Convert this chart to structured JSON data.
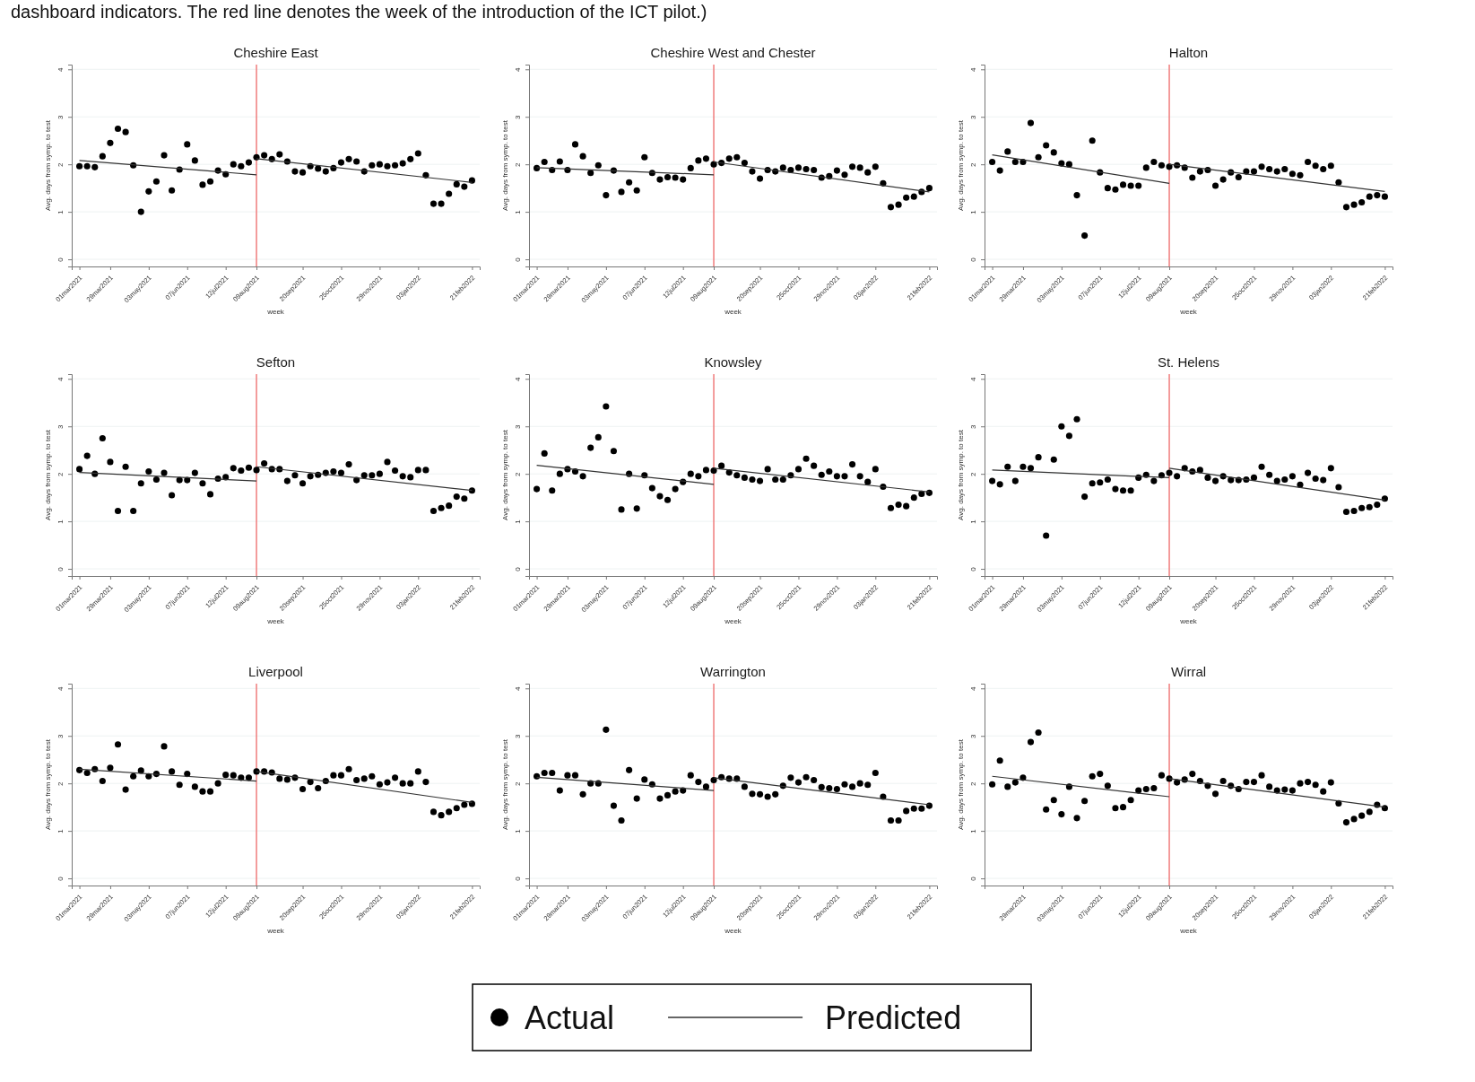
{
  "chart_data": [
    {
      "type": "scatter",
      "title": "Cheshire East",
      "xlabel": "week",
      "ylabel": "Avg. days from symp. to test",
      "annotations": [
        "dashboard indicators. The red line denotes the week of the introduction of the ICT pilot.)"
      ],
      "x": [
        "2021-03-01",
        "2021-03-08",
        "2021-03-15",
        "2021-03-22",
        "2021-03-29",
        "2021-04-05",
        "2021-04-12",
        "2021-04-19",
        "2021-04-26",
        "2021-05-03",
        "2021-05-10",
        "2021-05-17",
        "2021-05-24",
        "2021-05-31",
        "2021-06-07",
        "2021-06-14",
        "2021-06-21",
        "2021-06-28",
        "2021-07-05",
        "2021-07-12",
        "2021-07-19",
        "2021-07-26",
        "2021-08-02",
        "2021-08-09",
        "2021-08-16",
        "2021-08-23",
        "2021-08-30",
        "2021-09-06",
        "2021-09-13",
        "2021-09-20",
        "2021-09-27",
        "2021-10-04",
        "2021-10-11",
        "2021-10-18",
        "2021-10-25",
        "2021-11-01",
        "2021-11-08",
        "2021-11-15",
        "2021-11-22",
        "2021-11-29",
        "2021-12-06",
        "2021-12-13",
        "2021-12-20",
        "2021-12-27",
        "2022-01-03",
        "2022-01-10",
        "2022-01-17",
        "2022-01-24",
        "2022-01-31",
        "2022-02-07",
        "2022-02-14",
        "2022-02-21"
      ],
      "xlim": [
        "2021-02-22",
        "2022-02-28"
      ],
      "xticks": [
        {
          "value": "2021-03-01",
          "label": "01mar2021"
        },
        {
          "value": "2021-03-29",
          "label": "29mar2021"
        },
        {
          "value": "2021-05-03",
          "label": "03may2021"
        },
        {
          "value": "2021-06-07",
          "label": "07jun2021"
        },
        {
          "value": "2021-07-12",
          "label": "12jul2021"
        },
        {
          "value": "2021-08-09",
          "label": "09aug2021"
        },
        {
          "value": "2021-09-20",
          "label": "20sep2021"
        },
        {
          "value": "2021-10-25",
          "label": "25oct2021"
        },
        {
          "value": "2021-11-29",
          "label": "29nov2021"
        },
        {
          "value": "2022-01-03",
          "label": "03jan2022"
        },
        {
          "value": "2022-02-21",
          "label": "21feb2022"
        }
      ],
      "ylim": [
        -0.15,
        4.1
      ],
      "yticks": [
        0,
        1,
        2,
        3,
        4
      ],
      "grid": "y",
      "marker": "circle",
      "ref_lines": [
        {
          "axis": "x",
          "value": "2021-08-09",
          "color": "#f07c7c"
        }
      ],
      "series": [
        {
          "color": "#000000",
          "values": [
            1.96,
            1.96,
            1.94,
            2.17,
            2.45,
            2.75,
            2.68,
            1.98,
            1.0,
            1.43,
            1.64,
            2.19,
            1.45,
            1.89,
            2.42,
            2.08,
            1.57,
            1.64,
            1.87,
            1.79,
            2.0,
            1.96,
            2.04,
            2.15,
            2.19,
            2.11,
            2.21,
            2.06,
            1.85,
            1.83,
            1.96,
            1.91,
            1.85,
            1.92,
            2.04,
            2.11,
            2.06,
            1.85,
            1.98,
            2.0,
            1.96,
            1.98,
            2.02,
            2.11,
            2.23,
            1.77,
            1.17,
            1.17,
            1.38,
            1.58,
            1.53,
            1.66
          ]
        },
        {
          "type": "line",
          "color": "#333333",
          "marker": "none",
          "x": [
            "2021-03-01",
            "2021-08-09"
          ],
          "values": [
            2.08,
            1.78
          ]
        },
        {
          "type": "line",
          "color": "#333333",
          "marker": "none",
          "x": [
            "2021-08-09",
            "2022-02-21"
          ],
          "values": [
            2.12,
            1.62
          ]
        }
      ]
    },
    {
      "type": "scatter",
      "title": "Cheshire West and Chester",
      "xlabel": "week",
      "ylabel": "Avg. days from symp. to test",
      "x": [
        "2021-03-01",
        "2021-03-08",
        "2021-03-15",
        "2021-03-22",
        "2021-03-29",
        "2021-04-05",
        "2021-04-12",
        "2021-04-19",
        "2021-04-26",
        "2021-05-03",
        "2021-05-10",
        "2021-05-17",
        "2021-05-24",
        "2021-05-31",
        "2021-06-07",
        "2021-06-14",
        "2021-06-21",
        "2021-06-28",
        "2021-07-05",
        "2021-07-12",
        "2021-07-19",
        "2021-07-26",
        "2021-08-02",
        "2021-08-09",
        "2021-08-16",
        "2021-08-23",
        "2021-08-30",
        "2021-09-06",
        "2021-09-13",
        "2021-09-20",
        "2021-09-27",
        "2021-10-04",
        "2021-10-11",
        "2021-10-18",
        "2021-10-25",
        "2021-11-01",
        "2021-11-08",
        "2021-11-15",
        "2021-11-22",
        "2021-11-29",
        "2021-12-06",
        "2021-12-13",
        "2021-12-20",
        "2021-12-27",
        "2022-01-03",
        "2022-01-10",
        "2022-01-17",
        "2022-01-24",
        "2022-01-31",
        "2022-02-07",
        "2022-02-14",
        "2022-02-21"
      ],
      "xlim": [
        "2021-02-22",
        "2022-02-28"
      ],
      "xticks": [
        {
          "value": "2021-03-01",
          "label": "01mar2021"
        },
        {
          "value": "2021-03-29",
          "label": "29mar2021"
        },
        {
          "value": "2021-05-03",
          "label": "03may2021"
        },
        {
          "value": "2021-06-07",
          "label": "07jun2021"
        },
        {
          "value": "2021-07-12",
          "label": "12jul2021"
        },
        {
          "value": "2021-08-09",
          "label": "09aug2021"
        },
        {
          "value": "2021-09-20",
          "label": "20sep2021"
        },
        {
          "value": "2021-10-25",
          "label": "25oct2021"
        },
        {
          "value": "2021-11-29",
          "label": "29nov2021"
        },
        {
          "value": "2022-01-03",
          "label": "03jan2022"
        },
        {
          "value": "2022-02-21",
          "label": "21feb2022"
        }
      ],
      "ylim": [
        -0.15,
        4.1
      ],
      "yticks": [
        0,
        1,
        2,
        3,
        4
      ],
      "grid": "y",
      "marker": "circle",
      "ref_lines": [
        {
          "axis": "x",
          "value": "2021-08-09",
          "color": "#f07c7c"
        }
      ],
      "series": [
        {
          "color": "#000000",
          "values": [
            1.92,
            2.05,
            1.88,
            2.06,
            1.88,
            2.42,
            2.17,
            1.82,
            1.98,
            1.35,
            1.87,
            1.42,
            1.62,
            1.45,
            2.15,
            1.82,
            1.68,
            1.73,
            1.72,
            1.68,
            1.92,
            2.08,
            2.12,
            2.0,
            2.03,
            2.12,
            2.15,
            2.03,
            1.85,
            1.7,
            1.88,
            1.85,
            1.93,
            1.88,
            1.93,
            1.9,
            1.88,
            1.72,
            1.75,
            1.87,
            1.78,
            1.95,
            1.93,
            1.83,
            1.95,
            1.6,
            1.1,
            1.15,
            1.3,
            1.32,
            1.42,
            1.5
          ]
        },
        {
          "type": "line",
          "color": "#333333",
          "marker": "none",
          "x": [
            "2021-03-01",
            "2021-08-09"
          ],
          "values": [
            1.93,
            1.78
          ]
        },
        {
          "type": "line",
          "color": "#333333",
          "marker": "none",
          "x": [
            "2021-08-09",
            "2022-02-21"
          ],
          "values": [
            2.05,
            1.42
          ]
        }
      ]
    },
    {
      "type": "scatter",
      "title": "Halton",
      "xlabel": "week",
      "ylabel": "Avg. days from symp. to test",
      "x": [
        "2021-03-01",
        "2021-03-08",
        "2021-03-15",
        "2021-03-22",
        "2021-03-29",
        "2021-04-05",
        "2021-04-12",
        "2021-04-19",
        "2021-04-26",
        "2021-05-03",
        "2021-05-10",
        "2021-05-17",
        "2021-05-24",
        "2021-05-31",
        "2021-06-07",
        "2021-06-14",
        "2021-06-21",
        "2021-06-28",
        "2021-07-05",
        "2021-07-12",
        "2021-07-19",
        "2021-07-26",
        "2021-08-02",
        "2021-08-09",
        "2021-08-16",
        "2021-08-23",
        "2021-08-30",
        "2021-09-06",
        "2021-09-13",
        "2021-09-20",
        "2021-09-27",
        "2021-10-04",
        "2021-10-11",
        "2021-10-18",
        "2021-10-25",
        "2021-11-01",
        "2021-11-08",
        "2021-11-15",
        "2021-11-22",
        "2021-11-29",
        "2021-12-06",
        "2021-12-13",
        "2021-12-20",
        "2021-12-27",
        "2022-01-03",
        "2022-01-10",
        "2022-01-17",
        "2022-01-24",
        "2022-01-31",
        "2022-02-07",
        "2022-02-14",
        "2022-02-21"
      ],
      "xlim": [
        "2021-02-22",
        "2022-02-28"
      ],
      "xticks": [
        {
          "value": "2021-03-01",
          "label": "01mar2021"
        },
        {
          "value": "2021-03-29",
          "label": "29mar2021"
        },
        {
          "value": "2021-05-03",
          "label": "03may2021"
        },
        {
          "value": "2021-06-07",
          "label": "07jun2021"
        },
        {
          "value": "2021-07-12",
          "label": "12jul2021"
        },
        {
          "value": "2021-08-09",
          "label": "09aug2021"
        },
        {
          "value": "2021-09-20",
          "label": "20sep2021"
        },
        {
          "value": "2021-10-25",
          "label": "25oct2021"
        },
        {
          "value": "2021-11-29",
          "label": "29nov2021"
        },
        {
          "value": "2022-01-03",
          "label": "03jan2022"
        },
        {
          "value": "2022-02-21",
          "label": "21feb2022"
        }
      ],
      "ylim": [
        -0.15,
        4.1
      ],
      "yticks": [
        0,
        1,
        2,
        3,
        4
      ],
      "grid": "y",
      "marker": "circle",
      "ref_lines": [
        {
          "axis": "x",
          "value": "2021-08-09",
          "color": "#f07c7c"
        }
      ],
      "series": [
        {
          "color": "#000000",
          "values": [
            2.05,
            1.87,
            2.27,
            2.05,
            2.05,
            2.87,
            2.15,
            2.4,
            2.25,
            2.02,
            2.0,
            1.35,
            0.5,
            2.5,
            1.83,
            1.5,
            1.47,
            1.57,
            1.55,
            1.55,
            1.93,
            2.05,
            1.98,
            1.95,
            1.98,
            1.93,
            1.72,
            1.85,
            1.88,
            1.55,
            1.68,
            1.83,
            1.73,
            1.85,
            1.85,
            1.95,
            1.9,
            1.85,
            1.9,
            1.8,
            1.77,
            2.05,
            1.97,
            1.9,
            1.97,
            1.62,
            1.1,
            1.15,
            1.2,
            1.32,
            1.35,
            1.32
          ]
        },
        {
          "type": "line",
          "color": "#333333",
          "marker": "none",
          "x": [
            "2021-03-01",
            "2021-08-09"
          ],
          "values": [
            2.2,
            1.6
          ]
        },
        {
          "type": "line",
          "color": "#333333",
          "marker": "none",
          "x": [
            "2021-08-09",
            "2022-02-21"
          ],
          "values": [
            2.0,
            1.43
          ]
        }
      ]
    },
    {
      "type": "scatter",
      "title": "Sefton",
      "xlabel": "week",
      "ylabel": "Avg. days from symp. to test",
      "x": [
        "2021-03-01",
        "2021-03-08",
        "2021-03-15",
        "2021-03-22",
        "2021-03-29",
        "2021-04-05",
        "2021-04-12",
        "2021-04-19",
        "2021-04-26",
        "2021-05-03",
        "2021-05-10",
        "2021-05-17",
        "2021-05-24",
        "2021-05-31",
        "2021-06-07",
        "2021-06-14",
        "2021-06-21",
        "2021-06-28",
        "2021-07-05",
        "2021-07-12",
        "2021-07-19",
        "2021-07-26",
        "2021-08-02",
        "2021-08-09",
        "2021-08-16",
        "2021-08-23",
        "2021-08-30",
        "2021-09-06",
        "2021-09-13",
        "2021-09-20",
        "2021-09-27",
        "2021-10-04",
        "2021-10-11",
        "2021-10-18",
        "2021-10-25",
        "2021-11-01",
        "2021-11-08",
        "2021-11-15",
        "2021-11-22",
        "2021-11-29",
        "2021-12-06",
        "2021-12-13",
        "2021-12-20",
        "2021-12-27",
        "2022-01-03",
        "2022-01-10",
        "2022-01-17",
        "2022-01-24",
        "2022-01-31",
        "2022-02-07",
        "2022-02-14",
        "2022-02-21"
      ],
      "xlim": [
        "2021-02-22",
        "2022-02-28"
      ],
      "xticks": [
        {
          "value": "2021-03-01",
          "label": "01mar2021"
        },
        {
          "value": "2021-03-29",
          "label": "29mar2021"
        },
        {
          "value": "2021-05-03",
          "label": "03may2021"
        },
        {
          "value": "2021-06-07",
          "label": "07jun2021"
        },
        {
          "value": "2021-07-12",
          "label": "12jul2021"
        },
        {
          "value": "2021-08-09",
          "label": "09aug2021"
        },
        {
          "value": "2021-09-20",
          "label": "20sep2021"
        },
        {
          "value": "2021-10-25",
          "label": "25oct2021"
        },
        {
          "value": "2021-11-29",
          "label": "29nov2021"
        },
        {
          "value": "2022-01-03",
          "label": "03jan2022"
        },
        {
          "value": "2022-02-21",
          "label": "21feb2022"
        }
      ],
      "ylim": [
        -0.15,
        4.1
      ],
      "yticks": [
        0,
        1,
        2,
        3,
        4
      ],
      "grid": "y",
      "marker": "circle",
      "ref_lines": [
        {
          "axis": "x",
          "value": "2021-08-09",
          "color": "#f07c7c"
        }
      ],
      "series": [
        {
          "color": "#000000",
          "values": [
            2.1,
            2.38,
            2.0,
            2.75,
            2.25,
            1.22,
            2.15,
            1.22,
            1.8,
            2.05,
            1.88,
            2.02,
            1.55,
            1.87,
            1.87,
            2.02,
            1.8,
            1.57,
            1.9,
            1.93,
            2.12,
            2.07,
            2.13,
            2.08,
            2.22,
            2.1,
            2.1,
            1.85,
            1.97,
            1.8,
            1.95,
            1.98,
            2.02,
            2.05,
            2.02,
            2.2,
            1.87,
            1.97,
            1.97,
            2.0,
            2.25,
            2.07,
            1.95,
            1.93,
            2.08,
            2.08,
            1.22,
            1.28,
            1.33,
            1.52,
            1.48,
            1.65
          ]
        },
        {
          "type": "line",
          "color": "#333333",
          "marker": "none",
          "x": [
            "2021-03-01",
            "2021-08-09"
          ],
          "values": [
            2.03,
            1.85
          ]
        },
        {
          "type": "line",
          "color": "#333333",
          "marker": "none",
          "x": [
            "2021-08-09",
            "2022-02-21"
          ],
          "values": [
            2.15,
            1.65
          ]
        }
      ]
    },
    {
      "type": "scatter",
      "title": "Knowsley",
      "xlabel": "week",
      "ylabel": "Avg. days from symp. to test",
      "x": [
        "2021-03-01",
        "2021-03-08",
        "2021-03-15",
        "2021-03-22",
        "2021-03-29",
        "2021-04-05",
        "2021-04-12",
        "2021-04-19",
        "2021-04-26",
        "2021-05-03",
        "2021-05-10",
        "2021-05-17",
        "2021-05-24",
        "2021-05-31",
        "2021-06-07",
        "2021-06-14",
        "2021-06-21",
        "2021-06-28",
        "2021-07-05",
        "2021-07-12",
        "2021-07-19",
        "2021-07-26",
        "2021-08-02",
        "2021-08-09",
        "2021-08-16",
        "2021-08-23",
        "2021-08-30",
        "2021-09-06",
        "2021-09-13",
        "2021-09-20",
        "2021-09-27",
        "2021-10-04",
        "2021-10-11",
        "2021-10-18",
        "2021-10-25",
        "2021-11-01",
        "2021-11-08",
        "2021-11-15",
        "2021-11-22",
        "2021-11-29",
        "2021-12-06",
        "2021-12-13",
        "2021-12-20",
        "2021-12-27",
        "2022-01-03",
        "2022-01-10",
        "2022-01-17",
        "2022-01-24",
        "2022-01-31",
        "2022-02-07",
        "2022-02-14",
        "2022-02-21"
      ],
      "xlim": [
        "2021-02-22",
        "2022-02-28"
      ],
      "xticks": [
        {
          "value": "2021-03-01",
          "label": "01mar2021"
        },
        {
          "value": "2021-03-29",
          "label": "29mar2021"
        },
        {
          "value": "2021-05-03",
          "label": "03may2021"
        },
        {
          "value": "2021-06-07",
          "label": "07jun2021"
        },
        {
          "value": "2021-07-12",
          "label": "12jul2021"
        },
        {
          "value": "2021-08-09",
          "label": "09aug2021"
        },
        {
          "value": "2021-09-20",
          "label": "20sep2021"
        },
        {
          "value": "2021-10-25",
          "label": "25oct2021"
        },
        {
          "value": "2021-11-29",
          "label": "29nov2021"
        },
        {
          "value": "2022-01-03",
          "label": "03jan2022"
        },
        {
          "value": "2022-02-21",
          "label": "21feb2022"
        }
      ],
      "ylim": [
        -0.15,
        4.1
      ],
      "yticks": [
        0,
        1,
        2,
        3,
        4
      ],
      "grid": "y",
      "marker": "circle",
      "ref_lines": [
        {
          "axis": "x",
          "value": "2021-08-09",
          "color": "#f07c7c"
        }
      ],
      "series": [
        {
          "color": "#000000",
          "values": [
            1.68,
            2.43,
            1.65,
            2.0,
            2.1,
            2.05,
            1.95,
            2.55,
            2.77,
            3.42,
            2.48,
            1.25,
            2.0,
            1.27,
            1.97,
            1.7,
            1.53,
            1.45,
            1.68,
            1.83,
            2.0,
            1.95,
            2.08,
            2.07,
            2.17,
            2.03,
            1.97,
            1.92,
            1.88,
            1.85,
            2.1,
            1.88,
            1.88,
            1.97,
            2.1,
            2.32,
            2.17,
            1.98,
            2.05,
            1.95,
            1.95,
            2.2,
            1.95,
            1.83,
            2.1,
            1.73,
            1.28,
            1.35,
            1.32,
            1.5,
            1.58,
            1.6
          ]
        },
        {
          "type": "line",
          "color": "#333333",
          "marker": "none",
          "x": [
            "2021-03-01",
            "2021-08-09"
          ],
          "values": [
            2.18,
            1.78
          ]
        },
        {
          "type": "line",
          "color": "#333333",
          "marker": "none",
          "x": [
            "2021-08-09",
            "2022-02-21"
          ],
          "values": [
            2.12,
            1.62
          ]
        }
      ]
    },
    {
      "type": "scatter",
      "title": "St. Helens",
      "xlabel": "week",
      "ylabel": "Avg. days from symp. to test",
      "x": [
        "2021-03-01",
        "2021-03-08",
        "2021-03-15",
        "2021-03-22",
        "2021-03-29",
        "2021-04-05",
        "2021-04-12",
        "2021-04-19",
        "2021-04-26",
        "2021-05-03",
        "2021-05-10",
        "2021-05-17",
        "2021-05-24",
        "2021-05-31",
        "2021-06-07",
        "2021-06-14",
        "2021-06-21",
        "2021-06-28",
        "2021-07-05",
        "2021-07-12",
        "2021-07-19",
        "2021-07-26",
        "2021-08-02",
        "2021-08-09",
        "2021-08-16",
        "2021-08-23",
        "2021-08-30",
        "2021-09-06",
        "2021-09-13",
        "2021-09-20",
        "2021-09-27",
        "2021-10-04",
        "2021-10-11",
        "2021-10-18",
        "2021-10-25",
        "2021-11-01",
        "2021-11-08",
        "2021-11-15",
        "2021-11-22",
        "2021-11-29",
        "2021-12-06",
        "2021-12-13",
        "2021-12-20",
        "2021-12-27",
        "2022-01-03",
        "2022-01-10",
        "2022-01-17",
        "2022-01-24",
        "2022-01-31",
        "2022-02-07",
        "2022-02-14",
        "2022-02-21"
      ],
      "xlim": [
        "2021-02-22",
        "2022-02-28"
      ],
      "xticks": [
        {
          "value": "2021-03-01",
          "label": "01mar2021"
        },
        {
          "value": "2021-03-29",
          "label": "29mar2021"
        },
        {
          "value": "2021-05-03",
          "label": "03may2021"
        },
        {
          "value": "2021-06-07",
          "label": "07jun2021"
        },
        {
          "value": "2021-07-12",
          "label": "12jul2021"
        },
        {
          "value": "2021-08-09",
          "label": "09aug2021"
        },
        {
          "value": "2021-09-20",
          "label": "20sep2021"
        },
        {
          "value": "2021-10-25",
          "label": "25oct2021"
        },
        {
          "value": "2021-11-29",
          "label": "29nov2021"
        },
        {
          "value": "2022-01-03",
          "label": "03jan2022"
        },
        {
          "value": "2022-02-21",
          "label": "21feb2022"
        }
      ],
      "ylim": [
        -0.15,
        4.1
      ],
      "yticks": [
        0,
        1,
        2,
        3,
        4
      ],
      "grid": "y",
      "marker": "circle",
      "ref_lines": [
        {
          "axis": "x",
          "value": "2021-08-09",
          "color": "#f07c7c"
        }
      ],
      "series": [
        {
          "color": "#000000",
          "values": [
            1.85,
            1.78,
            2.15,
            1.85,
            2.15,
            2.12,
            2.35,
            0.7,
            2.3,
            3.0,
            2.8,
            3.15,
            1.52,
            1.8,
            1.82,
            1.88,
            1.68,
            1.65,
            1.65,
            1.92,
            1.98,
            1.85,
            1.97,
            2.02,
            1.95,
            2.12,
            2.05,
            2.08,
            1.92,
            1.85,
            1.95,
            1.87,
            1.87,
            1.88,
            1.92,
            2.15,
            1.98,
            1.85,
            1.88,
            1.95,
            1.77,
            2.02,
            1.9,
            1.87,
            2.12,
            1.72,
            1.2,
            1.22,
            1.28,
            1.3,
            1.35,
            1.48
          ]
        },
        {
          "type": "line",
          "color": "#333333",
          "marker": "none",
          "x": [
            "2021-03-01",
            "2021-08-09"
          ],
          "values": [
            2.08,
            1.92
          ]
        },
        {
          "type": "line",
          "color": "#333333",
          "marker": "none",
          "x": [
            "2021-08-09",
            "2022-02-21"
          ],
          "values": [
            2.12,
            1.45
          ]
        }
      ]
    },
    {
      "type": "scatter",
      "title": "Liverpool",
      "xlabel": "week",
      "ylabel": "Avg. days from symp. to test",
      "x": [
        "2021-03-01",
        "2021-03-08",
        "2021-03-15",
        "2021-03-22",
        "2021-03-29",
        "2021-04-05",
        "2021-04-12",
        "2021-04-19",
        "2021-04-26",
        "2021-05-03",
        "2021-05-10",
        "2021-05-17",
        "2021-05-24",
        "2021-05-31",
        "2021-06-07",
        "2021-06-14",
        "2021-06-21",
        "2021-06-28",
        "2021-07-05",
        "2021-07-12",
        "2021-07-19",
        "2021-07-26",
        "2021-08-02",
        "2021-08-09",
        "2021-08-16",
        "2021-08-23",
        "2021-08-30",
        "2021-09-06",
        "2021-09-13",
        "2021-09-20",
        "2021-09-27",
        "2021-10-04",
        "2021-10-11",
        "2021-10-18",
        "2021-10-25",
        "2021-11-01",
        "2021-11-08",
        "2021-11-15",
        "2021-11-22",
        "2021-11-29",
        "2021-12-06",
        "2021-12-13",
        "2021-12-20",
        "2021-12-27",
        "2022-01-03",
        "2022-01-10",
        "2022-01-17",
        "2022-01-24",
        "2022-01-31",
        "2022-02-07",
        "2022-02-14",
        "2022-02-21"
      ],
      "xlim": [
        "2021-02-22",
        "2022-02-28"
      ],
      "xticks": [
        {
          "value": "2021-03-01",
          "label": "01mar2021"
        },
        {
          "value": "2021-03-29",
          "label": "29mar2021"
        },
        {
          "value": "2021-05-03",
          "label": "03may2021"
        },
        {
          "value": "2021-06-07",
          "label": "07jun2021"
        },
        {
          "value": "2021-07-12",
          "label": "12jul2021"
        },
        {
          "value": "2021-08-09",
          "label": "09aug2021"
        },
        {
          "value": "2021-09-20",
          "label": "20sep2021"
        },
        {
          "value": "2021-10-25",
          "label": "25oct2021"
        },
        {
          "value": "2021-11-29",
          "label": "29nov2021"
        },
        {
          "value": "2022-01-03",
          "label": "03jan2022"
        },
        {
          "value": "2022-02-21",
          "label": "21feb2022"
        }
      ],
      "ylim": [
        -0.15,
        4.1
      ],
      "yticks": [
        0,
        1,
        2,
        3,
        4
      ],
      "grid": "y",
      "marker": "circle",
      "ref_lines": [
        {
          "axis": "x",
          "value": "2021-08-09",
          "color": "#f07c7c"
        }
      ],
      "series": [
        {
          "color": "#000000",
          "values": [
            2.28,
            2.22,
            2.3,
            2.05,
            2.33,
            2.82,
            1.87,
            2.15,
            2.27,
            2.15,
            2.2,
            2.78,
            2.25,
            1.97,
            2.2,
            1.93,
            1.83,
            1.83,
            2.0,
            2.18,
            2.17,
            2.12,
            2.12,
            2.25,
            2.25,
            2.23,
            2.1,
            2.08,
            2.12,
            1.88,
            2.03,
            1.9,
            2.05,
            2.17,
            2.17,
            2.3,
            2.07,
            2.1,
            2.15,
            1.98,
            2.02,
            2.12,
            2.0,
            2.0,
            2.25,
            2.03,
            1.4,
            1.33,
            1.4,
            1.48,
            1.55,
            1.57
          ]
        },
        {
          "type": "line",
          "color": "#333333",
          "marker": "none",
          "x": [
            "2021-03-01",
            "2021-08-09"
          ],
          "values": [
            2.3,
            2.05
          ]
        },
        {
          "type": "line",
          "color": "#333333",
          "marker": "none",
          "x": [
            "2021-08-09",
            "2022-02-21"
          ],
          "values": [
            2.25,
            1.6
          ]
        }
      ]
    },
    {
      "type": "scatter",
      "title": "Warrington",
      "xlabel": "week",
      "ylabel": "Avg. days from symp. to test",
      "legend": "bottom",
      "x": [
        "2021-03-01",
        "2021-03-08",
        "2021-03-15",
        "2021-03-22",
        "2021-03-29",
        "2021-04-05",
        "2021-04-12",
        "2021-04-19",
        "2021-04-26",
        "2021-05-03",
        "2021-05-10",
        "2021-05-17",
        "2021-05-24",
        "2021-05-31",
        "2021-06-07",
        "2021-06-14",
        "2021-06-21",
        "2021-06-28",
        "2021-07-05",
        "2021-07-12",
        "2021-07-19",
        "2021-07-26",
        "2021-08-02",
        "2021-08-09",
        "2021-08-16",
        "2021-08-23",
        "2021-08-30",
        "2021-09-06",
        "2021-09-13",
        "2021-09-20",
        "2021-09-27",
        "2021-10-04",
        "2021-10-11",
        "2021-10-18",
        "2021-10-25",
        "2021-11-01",
        "2021-11-08",
        "2021-11-15",
        "2021-11-22",
        "2021-11-29",
        "2021-12-06",
        "2021-12-13",
        "2021-12-20",
        "2021-12-27",
        "2022-01-03",
        "2022-01-10",
        "2022-01-17",
        "2022-01-24",
        "2022-01-31",
        "2022-02-07",
        "2022-02-14",
        "2022-02-21"
      ],
      "xlim": [
        "2021-02-22",
        "2022-02-28"
      ],
      "xticks": [
        {
          "value": "2021-03-01",
          "label": "01mar2021"
        },
        {
          "value": "2021-03-29",
          "label": "29mar2021"
        },
        {
          "value": "2021-05-03",
          "label": "03may2021"
        },
        {
          "value": "2021-06-07",
          "label": "07jun2021"
        },
        {
          "value": "2021-07-12",
          "label": "12jul2021"
        },
        {
          "value": "2021-08-09",
          "label": "09aug2021"
        },
        {
          "value": "2021-09-20",
          "label": "20sep2021"
        },
        {
          "value": "2021-10-25",
          "label": "25oct2021"
        },
        {
          "value": "2021-11-29",
          "label": "29nov2021"
        },
        {
          "value": "2022-01-03",
          "label": "03jan2022"
        },
        {
          "value": "2022-02-21",
          "label": "21feb2022"
        }
      ],
      "ylim": [
        -0.15,
        4.1
      ],
      "yticks": [
        0,
        1,
        2,
        3,
        4
      ],
      "grid": "y",
      "marker": "circle",
      "ref_lines": [
        {
          "axis": "x",
          "value": "2021-08-09",
          "color": "#f07c7c"
        }
      ],
      "series": [
        {
          "name": "Actual",
          "color": "#000000",
          "values": [
            2.15,
            2.22,
            2.22,
            1.85,
            2.17,
            2.17,
            1.77,
            2.0,
            2.0,
            3.13,
            1.53,
            1.22,
            2.28,
            1.68,
            2.08,
            1.98,
            1.68,
            1.75,
            1.83,
            1.85,
            2.17,
            2.03,
            1.93,
            2.07,
            2.13,
            2.1,
            2.1,
            1.93,
            1.78,
            1.77,
            1.72,
            1.77,
            1.95,
            2.12,
            2.02,
            2.13,
            2.07,
            1.92,
            1.9,
            1.88,
            1.98,
            1.93,
            2.0,
            1.97,
            2.22,
            1.72,
            1.22,
            1.22,
            1.42,
            1.47,
            1.47,
            1.53
          ]
        },
        {
          "type": "line",
          "name": "Predicted",
          "color": "#333333",
          "marker": "none",
          "x": [
            "2021-03-01",
            "2021-08-09"
          ],
          "values": [
            2.13,
            1.85
          ]
        },
        {
          "type": "line",
          "color": "#333333",
          "marker": "none",
          "x": [
            "2021-08-09",
            "2022-02-21"
          ],
          "values": [
            2.12,
            1.55
          ]
        }
      ]
    },
    {
      "type": "scatter",
      "title": "Wirral",
      "xlabel": "week",
      "ylabel": "Avg. days from symp. to test",
      "x": [
        "2021-03-01",
        "2021-03-08",
        "2021-03-15",
        "2021-03-22",
        "2021-03-29",
        "2021-04-05",
        "2021-04-12",
        "2021-04-19",
        "2021-04-26",
        "2021-05-03",
        "2021-05-10",
        "2021-05-17",
        "2021-05-24",
        "2021-05-31",
        "2021-06-07",
        "2021-06-14",
        "2021-06-21",
        "2021-06-28",
        "2021-07-05",
        "2021-07-12",
        "2021-07-19",
        "2021-07-26",
        "2021-08-02",
        "2021-08-09",
        "2021-08-16",
        "2021-08-23",
        "2021-08-30",
        "2021-09-06",
        "2021-09-13",
        "2021-09-20",
        "2021-09-27",
        "2021-10-04",
        "2021-10-11",
        "2021-10-18",
        "2021-10-25",
        "2021-11-01",
        "2021-11-08",
        "2021-11-15",
        "2021-11-22",
        "2021-11-29",
        "2021-12-06",
        "2021-12-13",
        "2021-12-20",
        "2021-12-27",
        "2022-01-03",
        "2022-01-10",
        "2022-01-17",
        "2022-01-24",
        "2022-01-31",
        "2022-02-07",
        "2022-02-14",
        "2022-02-21"
      ],
      "xlim": [
        "2021-02-22",
        "2022-02-28"
      ],
      "xticks": [
        {
          "value": "2021-03-29",
          "label": "29mar2021"
        },
        {
          "value": "2021-05-03",
          "label": "03may2021"
        },
        {
          "value": "2021-06-07",
          "label": "07jun2021"
        },
        {
          "value": "2021-07-12",
          "label": "12jul2021"
        },
        {
          "value": "2021-08-09",
          "label": "09aug2021"
        },
        {
          "value": "2021-09-20",
          "label": "20sep2021"
        },
        {
          "value": "2021-10-25",
          "label": "25oct2021"
        },
        {
          "value": "2021-11-29",
          "label": "29nov2021"
        },
        {
          "value": "2022-01-03",
          "label": "03jan2022"
        },
        {
          "value": "2022-02-21",
          "label": "21feb2022"
        }
      ],
      "ylim": [
        -0.15,
        4.1
      ],
      "yticks": [
        0,
        1,
        2,
        3,
        4
      ],
      "grid": "y",
      "marker": "circle",
      "ref_lines": [
        {
          "axis": "x",
          "value": "2021-08-09",
          "color": "#f07c7c"
        }
      ],
      "series": [
        {
          "color": "#000000",
          "values": [
            1.98,
            2.48,
            1.93,
            2.02,
            2.12,
            2.87,
            3.07,
            1.45,
            1.65,
            1.35,
            1.93,
            1.27,
            1.63,
            2.15,
            2.2,
            1.95,
            1.48,
            1.5,
            1.65,
            1.85,
            1.88,
            1.9,
            2.17,
            2.1,
            2.02,
            2.08,
            2.2,
            2.05,
            1.95,
            1.78,
            2.05,
            1.95,
            1.88,
            2.03,
            2.03,
            2.17,
            1.93,
            1.85,
            1.87,
            1.85,
            2.0,
            2.03,
            1.97,
            1.83,
            2.02,
            1.58,
            1.18,
            1.25,
            1.32,
            1.4,
            1.55,
            1.48
          ]
        },
        {
          "type": "line",
          "color": "#333333",
          "marker": "none",
          "x": [
            "2021-03-01",
            "2021-08-09"
          ],
          "values": [
            2.15,
            1.72
          ]
        },
        {
          "type": "line",
          "color": "#333333",
          "marker": "none",
          "x": [
            "2021-08-09",
            "2022-02-21"
          ],
          "values": [
            2.1,
            1.5
          ]
        }
      ]
    }
  ]
}
